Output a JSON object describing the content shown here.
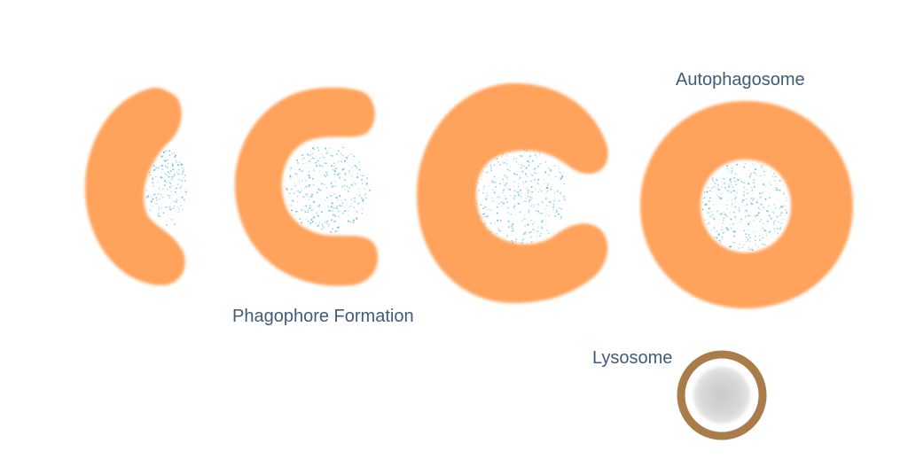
{
  "labels": {
    "phagophore": "Phagophore Formation",
    "autophagosome": "Autophagosome",
    "lysosome": "Lysosome"
  },
  "stages": [
    {
      "id": "phagophore-stage-1",
      "closure": 0.25
    },
    {
      "id": "phagophore-stage-2",
      "closure": 0.5
    },
    {
      "id": "phagophore-stage-3",
      "closure": 0.75
    },
    {
      "id": "autophagosome",
      "closure": 1.0
    }
  ],
  "colors": {
    "membrane": "#ffa35c",
    "cargo": "#55b8cc",
    "lysosome_ring": "#a97c4a",
    "lysosome_core": "#d5d5d5",
    "label_text": "#3f5b7c"
  }
}
